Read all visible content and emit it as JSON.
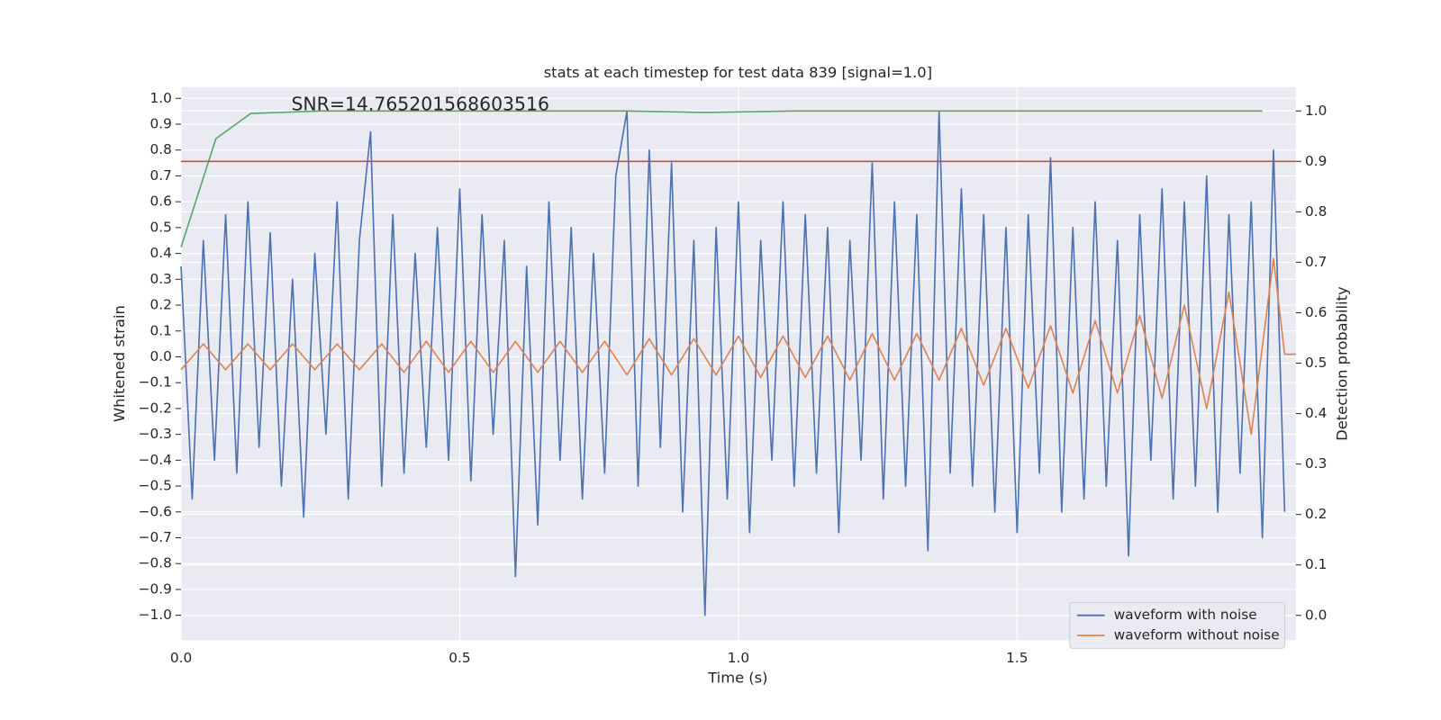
{
  "chart_data": {
    "type": "line",
    "title": "stats at each timestep for test data 839 [signal=1.0]",
    "xlabel": "Time (s)",
    "ylabel": "Whitened strain",
    "y2label": "Detection probability",
    "annotation": "SNR=14.765201568603516",
    "xlim": [
      0,
      2.0
    ],
    "ylim": [
      -1.096,
      1.043
    ],
    "y2lim": [
      -0.049,
      1.047
    ],
    "xticks": [
      {
        "value": 0,
        "label": "0.0"
      },
      0.5,
      {
        "value": 1,
        "label": "1.0"
      },
      1.5
    ],
    "yticks": [
      {
        "value": -1,
        "label": "−1.0"
      },
      {
        "value": -0.9,
        "label": "−0.9"
      },
      {
        "value": -0.8,
        "label": "−0.8"
      },
      {
        "value": -0.7,
        "label": "−0.7"
      },
      {
        "value": -0.6,
        "label": "−0.6"
      },
      {
        "value": -0.5,
        "label": "−0.5"
      },
      {
        "value": -0.4,
        "label": "−0.4"
      },
      {
        "value": -0.3,
        "label": "−0.3"
      },
      {
        "value": -0.2,
        "label": "−0.2"
      },
      {
        "value": -0.1,
        "label": "−0.1"
      },
      {
        "value": 0,
        "label": "0.0"
      },
      0.1,
      0.2,
      0.3,
      0.4,
      0.5,
      0.6,
      0.7,
      0.8,
      0.9,
      {
        "value": 1,
        "label": "1.0"
      }
    ],
    "y2ticks": [
      {
        "value": 0,
        "label": "0.0"
      },
      0.1,
      0.2,
      0.3,
      0.4,
      0.5,
      0.6,
      0.7,
      0.8,
      0.9,
      {
        "value": 1,
        "label": "1.0"
      }
    ],
    "grid": true,
    "legend": "lower right",
    "series": [
      {
        "name": "waveform with noise",
        "color": "#4c72b0",
        "x": [
          0,
          0.02,
          0.04,
          0.06,
          0.08,
          0.1,
          0.12,
          0.14,
          0.16,
          0.18,
          0.2,
          0.22,
          0.24,
          0.26,
          0.28,
          0.3,
          0.32,
          0.34,
          0.36,
          0.38,
          0.4,
          0.42,
          0.44,
          0.46,
          0.48,
          0.5,
          0.52,
          0.54,
          0.56,
          0.58,
          0.6,
          0.62,
          0.64,
          0.66,
          0.68,
          0.7,
          0.72,
          0.74,
          0.76,
          0.78,
          0.8,
          0.82,
          0.84,
          0.86,
          0.88,
          0.9,
          0.92,
          0.94,
          0.96,
          0.98,
          1,
          1.02,
          1.04,
          1.06,
          1.08,
          1.1,
          1.12,
          1.14,
          1.16,
          1.18,
          1.2,
          1.22,
          1.24,
          1.26,
          1.28,
          1.3,
          1.32,
          1.34,
          1.36,
          1.38,
          1.4,
          1.42,
          1.44,
          1.46,
          1.48,
          1.5,
          1.52,
          1.54,
          1.56,
          1.58,
          1.6,
          1.62,
          1.64,
          1.66,
          1.68,
          1.7,
          1.72,
          1.74,
          1.76,
          1.78,
          1.8,
          1.82,
          1.84,
          1.86,
          1.88,
          1.9,
          1.92,
          1.94,
          1.96,
          1.98
        ],
        "values": [
          0.35,
          -0.55,
          0.45,
          -0.4,
          0.55,
          -0.45,
          0.6,
          -0.35,
          0.48,
          -0.5,
          0.3,
          -0.62,
          0.4,
          -0.3,
          0.6,
          -0.55,
          0.45,
          0.87,
          -0.5,
          0.55,
          -0.45,
          0.4,
          -0.35,
          0.5,
          -0.4,
          0.65,
          -0.48,
          0.55,
          -0.3,
          0.45,
          -0.85,
          0.35,
          -0.65,
          0.6,
          -0.4,
          0.5,
          -0.55,
          0.4,
          -0.45,
          0.7,
          0.95,
          -0.5,
          0.8,
          -0.35,
          0.75,
          -0.6,
          0.45,
          -1.0,
          0.5,
          -0.55,
          0.6,
          -0.68,
          0.45,
          -0.4,
          0.6,
          -0.5,
          0.55,
          -0.45,
          0.5,
          -0.68,
          0.45,
          -0.4,
          0.75,
          -0.55,
          0.6,
          -0.5,
          0.55,
          -0.75,
          0.95,
          -0.45,
          0.65,
          -0.5,
          0.55,
          -0.6,
          0.5,
          -0.68,
          0.55,
          -0.45,
          0.77,
          -0.6,
          0.5,
          -0.55,
          0.6,
          -0.5,
          0.45,
          -0.77,
          0.55,
          -0.4,
          0.65,
          -0.55,
          0.6,
          -0.5,
          0.7,
          -0.6,
          0.55,
          -0.45,
          0.6,
          -0.7,
          0.8,
          -0.6
        ]
      },
      {
        "name": "waveform without noise",
        "color": "#dd8452",
        "x": [
          0,
          0.04,
          0.08,
          0.12,
          0.16,
          0.2,
          0.24,
          0.28,
          0.32,
          0.36,
          0.4,
          0.44,
          0.48,
          0.52,
          0.56,
          0.6,
          0.64,
          0.68,
          0.72,
          0.76,
          0.8,
          0.84,
          0.88,
          0.92,
          0.96,
          1,
          1.04,
          1.08,
          1.12,
          1.16,
          1.2,
          1.24,
          1.28,
          1.32,
          1.36,
          1.4,
          1.44,
          1.48,
          1.52,
          1.56,
          1.6,
          1.64,
          1.68,
          1.72,
          1.76,
          1.8,
          1.84,
          1.88,
          1.92,
          1.96,
          1.98,
          2.0
        ],
        "values": [
          -0.05,
          0.05,
          -0.05,
          0.05,
          -0.05,
          0.05,
          -0.05,
          0.05,
          -0.05,
          0.05,
          -0.06,
          0.06,
          -0.06,
          0.06,
          -0.06,
          0.06,
          -0.06,
          0.06,
          -0.06,
          0.06,
          -0.07,
          0.07,
          -0.07,
          0.07,
          -0.07,
          0.08,
          -0.08,
          0.08,
          -0.08,
          0.08,
          -0.09,
          0.09,
          -0.09,
          0.09,
          -0.09,
          0.11,
          -0.11,
          0.11,
          -0.12,
          0.12,
          -0.14,
          0.14,
          -0.14,
          0.16,
          -0.16,
          0.2,
          -0.2,
          0.25,
          -0.3,
          0.38,
          0.01,
          0.01
        ]
      },
      {
        "color": "#55a868",
        "axis": "y2",
        "x": [
          0,
          0.0625,
          0.125,
          0.25,
          0.5,
          0.8,
          0.94,
          1.1,
          1.5,
          1.94
        ],
        "values": [
          0.73,
          0.945,
          0.995,
          1.0,
          1.0,
          1.0,
          0.997,
          1.0,
          1.0,
          1.0
        ]
      }
    ],
    "hlines": [
      {
        "value": 0.9,
        "axis": "y2",
        "color": "#c44e52"
      }
    ]
  }
}
